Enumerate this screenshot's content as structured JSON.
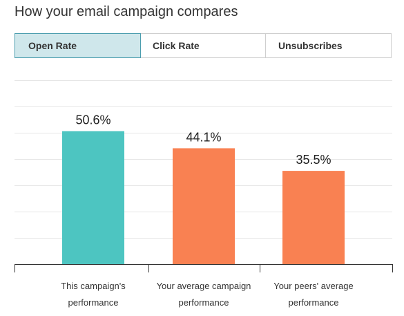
{
  "page": {
    "title": "How your email campaign compares"
  },
  "tabs": [
    {
      "label": "Open Rate",
      "active": true
    },
    {
      "label": "Click Rate",
      "active": false
    },
    {
      "label": "Unsubscribes",
      "active": false
    }
  ],
  "colors": {
    "campaign_bar": "#4dc5c1",
    "comparison_bar": "#f98152",
    "active_tab_bg": "#cfe7eb",
    "active_tab_border": "#4b9dae"
  },
  "chart_data": {
    "type": "bar",
    "categories": [
      [
        "This campaign's",
        "performance"
      ],
      [
        "Your average campaign",
        "performance"
      ],
      [
        "Your peers' average",
        "performance"
      ]
    ],
    "values": [
      50.6,
      44.1,
      35.5
    ],
    "value_labels": [
      "50.6%",
      "44.1%",
      "35.5%"
    ],
    "bar_colors": [
      "#4dc5c1",
      "#f98152",
      "#f98152"
    ],
    "ylim": [
      0,
      70
    ],
    "grid": true,
    "title": "",
    "xlabel": "",
    "ylabel": ""
  }
}
